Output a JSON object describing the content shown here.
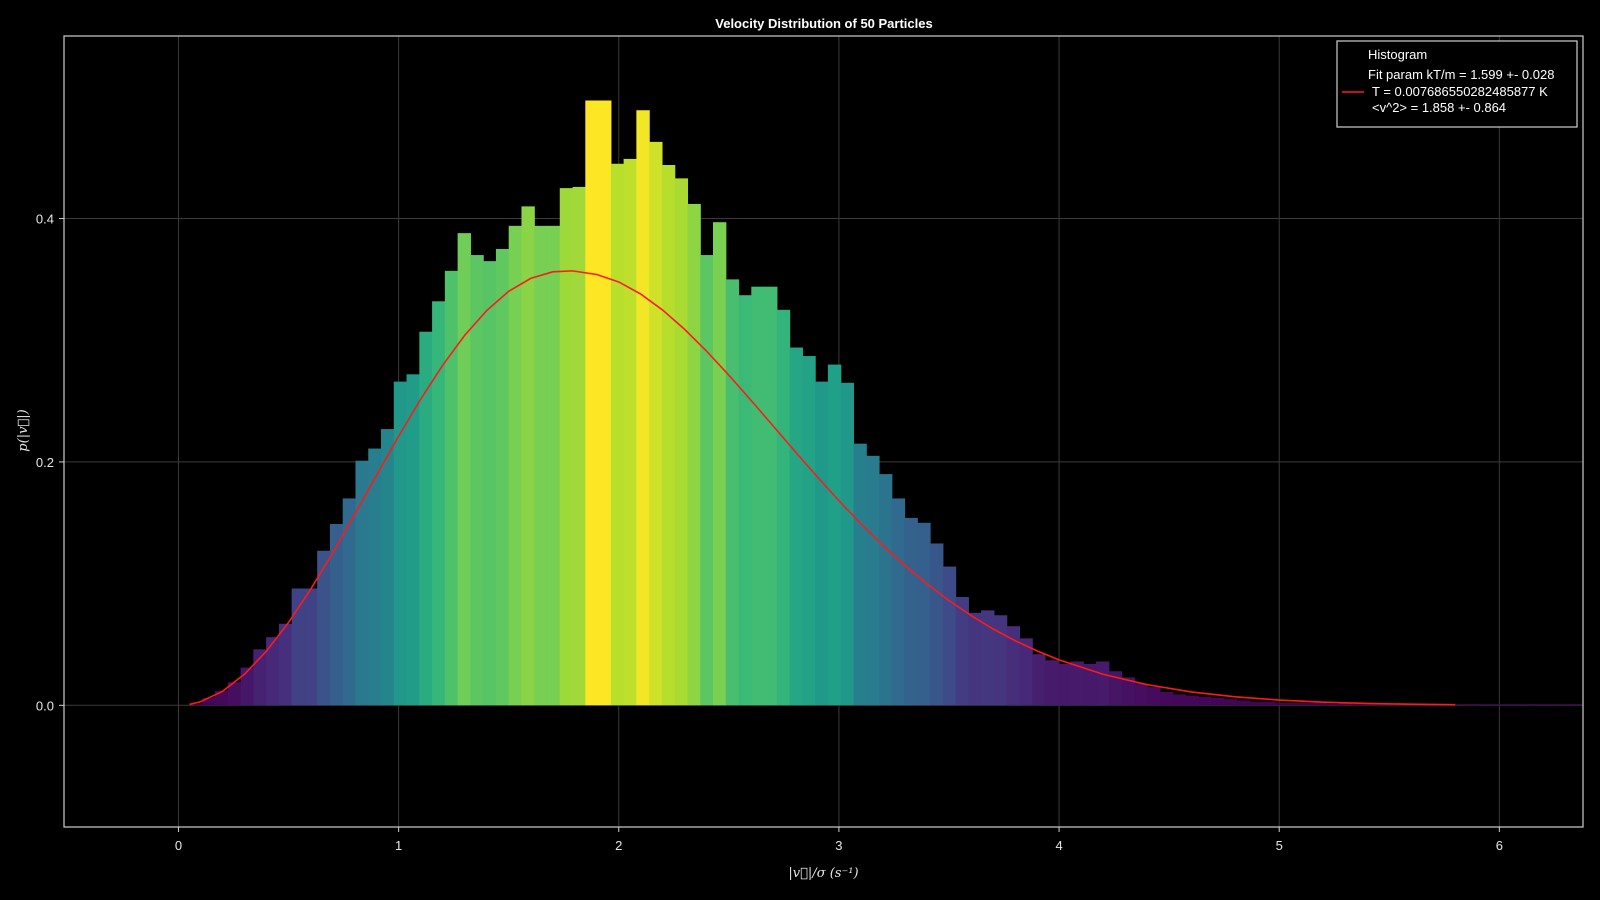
{
  "chart_data": {
    "type": "bar",
    "title": "Velocity Distribution of 50 Particles",
    "xlabel": "|v⃗|/σ (s⁻¹)",
    "ylabel": "p(|v⃗|)",
    "xlim": [
      -0.52,
      6.38
    ],
    "ylim": [
      -0.1,
      0.55
    ],
    "xticks": [
      "0",
      "1",
      "2",
      "3",
      "4",
      "5",
      "6"
    ],
    "yticks": [
      "0.0",
      "0.2",
      "0.4"
    ],
    "grid": true,
    "legend_position": "top-right",
    "legend": [
      {
        "label": "Histogram",
        "marker": "none"
      },
      {
        "label": "Fit param kT/m = 1.599 +- 0.028",
        "marker": "none"
      },
      {
        "label": "T = 0.007686550282485877 K",
        "marker": "line",
        "color": "#ff1a1a"
      },
      {
        "label": "<v^2> = 1.858 +- 0.864",
        "marker": "none"
      }
    ],
    "histogram": {
      "x_start": 0.05,
      "bin_width": 0.058,
      "colormap": "viridis",
      "values": [
        0.001,
        0.006,
        0.012,
        0.019,
        0.031,
        0.046,
        0.056,
        0.067,
        0.096,
        0.096,
        0.127,
        0.149,
        0.17,
        0.201,
        0.211,
        0.227,
        0.266,
        0.272,
        0.307,
        0.332,
        0.357,
        0.388,
        0.37,
        0.365,
        0.375,
        0.394,
        0.41,
        0.394,
        0.394,
        0.425,
        0.426,
        0.497,
        0.497,
        0.445,
        0.449,
        0.489,
        0.463,
        0.444,
        0.433,
        0.412,
        0.37,
        0.397,
        0.35,
        0.337,
        0.344,
        0.344,
        0.325,
        0.294,
        0.287,
        0.266,
        0.28,
        0.265,
        0.215,
        0.205,
        0.19,
        0.17,
        0.154,
        0.15,
        0.133,
        0.114,
        0.089,
        0.076,
        0.078,
        0.074,
        0.065,
        0.055,
        0.042,
        0.037,
        0.034,
        0.036,
        0.034,
        0.036,
        0.028,
        0.023,
        0.018,
        0.015,
        0.011,
        0.009,
        0.008,
        0.007,
        0.006,
        0.005,
        0.004,
        0.003,
        0.003,
        0.002,
        0.002,
        0.002,
        0.002,
        0.001,
        0.002,
        0.001,
        0.001,
        0.001,
        0.001,
        0.001,
        0.001,
        0.001,
        0.001,
        0.001,
        0.001,
        0.001,
        0.001,
        0.001,
        0.001,
        0.001,
        0.001,
        0.001,
        0.001
      ]
    },
    "series": [
      {
        "name": "T = 0.007686550282485877 K",
        "type": "line",
        "color": "#ff1a1a",
        "x": [
          0.05,
          0.1,
          0.2,
          0.3,
          0.4,
          0.5,
          0.6,
          0.7,
          0.8,
          0.9,
          1.0,
          1.1,
          1.2,
          1.3,
          1.4,
          1.5,
          1.6,
          1.7,
          1.79,
          1.9,
          2.0,
          2.1,
          2.2,
          2.3,
          2.4,
          2.5,
          2.6,
          2.7,
          2.8,
          2.9,
          3.0,
          3.1,
          3.2,
          3.3,
          3.4,
          3.5,
          3.6,
          3.7,
          3.8,
          3.9,
          4.0,
          4.2,
          4.4,
          4.6,
          4.8,
          5.0,
          5.2,
          5.4,
          5.6,
          5.8
        ],
        "y": [
          0.0007,
          0.0029,
          0.0115,
          0.0256,
          0.0446,
          0.0681,
          0.0952,
          0.1251,
          0.1568,
          0.1891,
          0.2211,
          0.2515,
          0.2794,
          0.304,
          0.3244,
          0.3402,
          0.3508,
          0.3562,
          0.357,
          0.354,
          0.3479,
          0.3379,
          0.3247,
          0.3088,
          0.2908,
          0.2713,
          0.2508,
          0.2298,
          0.2088,
          0.1881,
          0.1681,
          0.1492,
          0.1314,
          0.1149,
          0.0998,
          0.0861,
          0.0738,
          0.0628,
          0.0531,
          0.0447,
          0.0373,
          0.0255,
          0.017,
          0.011,
          0.007,
          0.0043,
          0.0026,
          0.0015,
          0.0009,
          0.0005
        ]
      }
    ]
  }
}
